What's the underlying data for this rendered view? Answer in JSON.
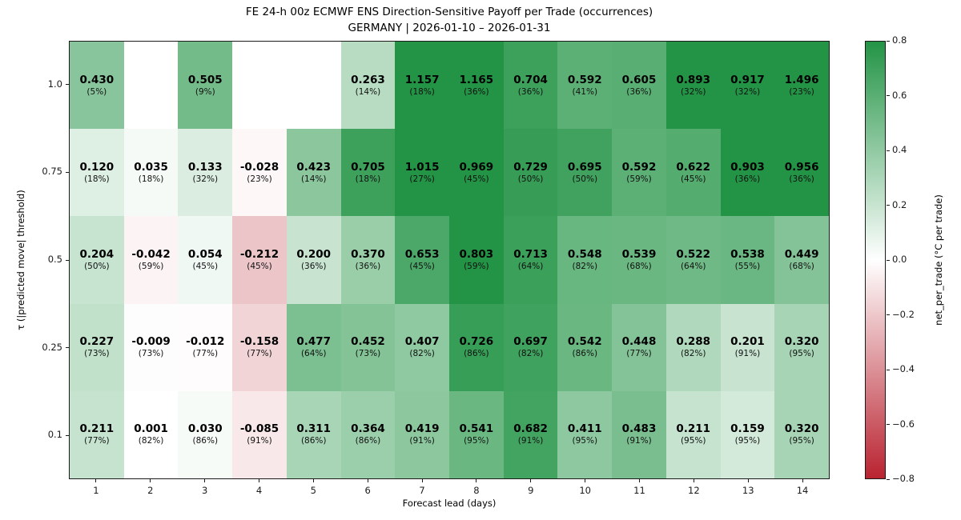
{
  "title": {
    "line1": "FE 24-h 00z ECMWF ENS Direction-Sensitive Payoff per Trade (occurrences)",
    "line2": "GERMANY | 2026-01-10 – 2026-01-31"
  },
  "axes": {
    "x_label": "Forecast lead (days)",
    "y_label": "τ (|predicted move| threshold)",
    "x_ticks": [
      "1",
      "2",
      "3",
      "4",
      "5",
      "6",
      "7",
      "8",
      "9",
      "10",
      "11",
      "12",
      "13",
      "14"
    ],
    "y_ticks": [
      "1.0",
      "0.75",
      "0.5",
      "0.25",
      "0.1"
    ]
  },
  "colorbar": {
    "label": "net_per_trade (°C per trade)",
    "ticks": [
      "0.8",
      "0.6",
      "0.4",
      "0.2",
      "0.0",
      "−0.2",
      "−0.4",
      "−0.6",
      "−0.8"
    ],
    "vmin": -0.8,
    "vmax": 0.8,
    "positive_end_color": "#239446",
    "negative_end_color": "#b92330",
    "mid_color": "#ffffff"
  },
  "chart_data": {
    "type": "heatmap",
    "title": "FE 24-h 00z ECMWF ENS Direction-Sensitive Payoff per Trade (occurrences)",
    "subtitle": "GERMANY | 2026-01-10 – 2026-01-31",
    "xlabel": "Forecast lead (days)",
    "ylabel": "τ (|predicted move| threshold)",
    "legend_label": "net_per_trade (°C per trade)",
    "x": [
      1,
      2,
      3,
      4,
      5,
      6,
      7,
      8,
      9,
      10,
      11,
      12,
      13,
      14
    ],
    "y": [
      1.0,
      0.75,
      0.5,
      0.25,
      0.1
    ],
    "color_range": [
      -0.8,
      0.8
    ],
    "rows": [
      {
        "tau": "1.0",
        "cells": [
          {
            "value": 0.43,
            "label": "0.430",
            "occ": "(5%)"
          },
          null,
          {
            "value": 0.505,
            "label": "0.505",
            "occ": "(9%)"
          },
          null,
          null,
          {
            "value": 0.263,
            "label": "0.263",
            "occ": "(14%)"
          },
          {
            "value": 1.157,
            "label": "1.157",
            "occ": "(18%)"
          },
          {
            "value": 1.165,
            "label": "1.165",
            "occ": "(36%)"
          },
          {
            "value": 0.704,
            "label": "0.704",
            "occ": "(36%)"
          },
          {
            "value": 0.592,
            "label": "0.592",
            "occ": "(41%)"
          },
          {
            "value": 0.605,
            "label": "0.605",
            "occ": "(36%)"
          },
          {
            "value": 0.893,
            "label": "0.893",
            "occ": "(32%)"
          },
          {
            "value": 0.917,
            "label": "0.917",
            "occ": "(32%)"
          },
          {
            "value": 1.496,
            "label": "1.496",
            "occ": "(23%)"
          }
        ]
      },
      {
        "tau": "0.75",
        "cells": [
          {
            "value": 0.12,
            "label": "0.120",
            "occ": "(18%)"
          },
          {
            "value": 0.035,
            "label": "0.035",
            "occ": "(18%)"
          },
          {
            "value": 0.133,
            "label": "0.133",
            "occ": "(32%)"
          },
          {
            "value": -0.028,
            "label": "-0.028",
            "occ": "(23%)"
          },
          {
            "value": 0.423,
            "label": "0.423",
            "occ": "(14%)"
          },
          {
            "value": 0.705,
            "label": "0.705",
            "occ": "(18%)"
          },
          {
            "value": 1.015,
            "label": "1.015",
            "occ": "(27%)"
          },
          {
            "value": 0.969,
            "label": "0.969",
            "occ": "(45%)"
          },
          {
            "value": 0.729,
            "label": "0.729",
            "occ": "(50%)"
          },
          {
            "value": 0.695,
            "label": "0.695",
            "occ": "(50%)"
          },
          {
            "value": 0.592,
            "label": "0.592",
            "occ": "(59%)"
          },
          {
            "value": 0.622,
            "label": "0.622",
            "occ": "(45%)"
          },
          {
            "value": 0.903,
            "label": "0.903",
            "occ": "(36%)"
          },
          {
            "value": 0.956,
            "label": "0.956",
            "occ": "(36%)"
          }
        ]
      },
      {
        "tau": "0.5",
        "cells": [
          {
            "value": 0.204,
            "label": "0.204",
            "occ": "(50%)"
          },
          {
            "value": -0.042,
            "label": "-0.042",
            "occ": "(59%)"
          },
          {
            "value": 0.054,
            "label": "0.054",
            "occ": "(45%)"
          },
          {
            "value": -0.212,
            "label": "-0.212",
            "occ": "(45%)"
          },
          {
            "value": 0.2,
            "label": "0.200",
            "occ": "(36%)"
          },
          {
            "value": 0.37,
            "label": "0.370",
            "occ": "(36%)"
          },
          {
            "value": 0.653,
            "label": "0.653",
            "occ": "(45%)"
          },
          {
            "value": 0.803,
            "label": "0.803",
            "occ": "(59%)"
          },
          {
            "value": 0.713,
            "label": "0.713",
            "occ": "(64%)"
          },
          {
            "value": 0.548,
            "label": "0.548",
            "occ": "(82%)"
          },
          {
            "value": 0.539,
            "label": "0.539",
            "occ": "(68%)"
          },
          {
            "value": 0.522,
            "label": "0.522",
            "occ": "(64%)"
          },
          {
            "value": 0.538,
            "label": "0.538",
            "occ": "(55%)"
          },
          {
            "value": 0.449,
            "label": "0.449",
            "occ": "(68%)"
          }
        ]
      },
      {
        "tau": "0.25",
        "cells": [
          {
            "value": 0.227,
            "label": "0.227",
            "occ": "(73%)"
          },
          {
            "value": -0.009,
            "label": "-0.009",
            "occ": "(73%)"
          },
          {
            "value": -0.012,
            "label": "-0.012",
            "occ": "(77%)"
          },
          {
            "value": -0.158,
            "label": "-0.158",
            "occ": "(77%)"
          },
          {
            "value": 0.477,
            "label": "0.477",
            "occ": "(64%)"
          },
          {
            "value": 0.452,
            "label": "0.452",
            "occ": "(73%)"
          },
          {
            "value": 0.407,
            "label": "0.407",
            "occ": "(82%)"
          },
          {
            "value": 0.726,
            "label": "0.726",
            "occ": "(86%)"
          },
          {
            "value": 0.697,
            "label": "0.697",
            "occ": "(82%)"
          },
          {
            "value": 0.542,
            "label": "0.542",
            "occ": "(86%)"
          },
          {
            "value": 0.448,
            "label": "0.448",
            "occ": "(77%)"
          },
          {
            "value": 0.288,
            "label": "0.288",
            "occ": "(82%)"
          },
          {
            "value": 0.201,
            "label": "0.201",
            "occ": "(91%)"
          },
          {
            "value": 0.32,
            "label": "0.320",
            "occ": "(95%)"
          }
        ]
      },
      {
        "tau": "0.1",
        "cells": [
          {
            "value": 0.211,
            "label": "0.211",
            "occ": "(77%)"
          },
          {
            "value": 0.001,
            "label": "0.001",
            "occ": "(82%)"
          },
          {
            "value": 0.03,
            "label": "0.030",
            "occ": "(86%)"
          },
          {
            "value": -0.085,
            "label": "-0.085",
            "occ": "(91%)"
          },
          {
            "value": 0.311,
            "label": "0.311",
            "occ": "(86%)"
          },
          {
            "value": 0.364,
            "label": "0.364",
            "occ": "(86%)"
          },
          {
            "value": 0.419,
            "label": "0.419",
            "occ": "(91%)"
          },
          {
            "value": 0.541,
            "label": "0.541",
            "occ": "(95%)"
          },
          {
            "value": 0.682,
            "label": "0.682",
            "occ": "(91%)"
          },
          {
            "value": 0.411,
            "label": "0.411",
            "occ": "(95%)"
          },
          {
            "value": 0.483,
            "label": "0.483",
            "occ": "(91%)"
          },
          {
            "value": 0.211,
            "label": "0.211",
            "occ": "(95%)"
          },
          {
            "value": 0.159,
            "label": "0.159",
            "occ": "(95%)"
          },
          {
            "value": 0.32,
            "label": "0.320",
            "occ": "(95%)"
          }
        ]
      }
    ]
  }
}
